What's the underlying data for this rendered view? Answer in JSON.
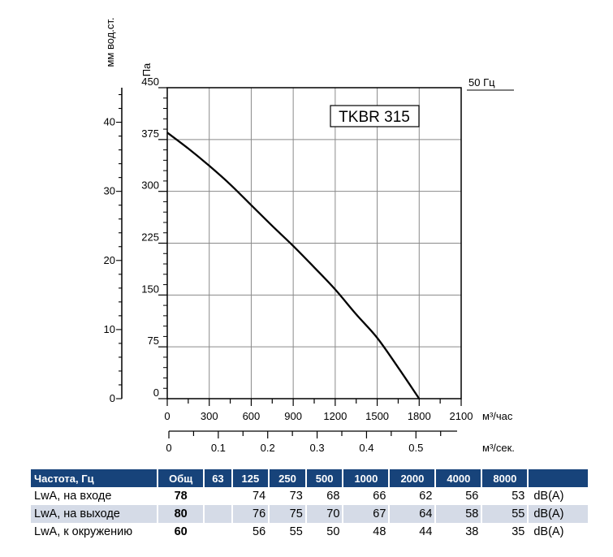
{
  "chart_data": {
    "type": "line",
    "title": "TKBR 315",
    "frequency_label": "50 Гц",
    "ylabel_left": "мм вод.ст.",
    "ylabel": "Па",
    "xlabel": "м³/час",
    "xlabel_secondary": "м³/сек.",
    "xlim": [
      0,
      2100
    ],
    "ylim": [
      0,
      450
    ],
    "ylim_left": [
      0,
      45
    ],
    "x_ticks": [
      "0",
      "300",
      "600",
      "900",
      "1200",
      "1500",
      "1800",
      "2100"
    ],
    "x_ticks_secondary": [
      "0",
      "0.1",
      "0.2",
      "0.3",
      "0.4",
      "0.5"
    ],
    "y_ticks": [
      "0",
      "75",
      "150",
      "225",
      "300",
      "375",
      "450"
    ],
    "y_ticks_left": [
      "0",
      "10",
      "20",
      "30",
      "40"
    ],
    "grid": true,
    "series": [
      {
        "x": [
          0,
          150,
          300,
          450,
          600,
          750,
          900,
          1050,
          1200,
          1350,
          1500,
          1650,
          1800
        ],
        "y": [
          385,
          362,
          337,
          310,
          280,
          250,
          221,
          190,
          158,
          122,
          88,
          45,
          0
        ]
      }
    ]
  },
  "table": {
    "headers": [
      "Частота, Гц",
      "Общ",
      "63",
      "125",
      "250",
      "500",
      "1000",
      "2000",
      "4000",
      "8000",
      ""
    ],
    "rows": [
      {
        "label": "LwA, на входе",
        "total": "78",
        "values": [
          "",
          "74",
          "73",
          "68",
          "66",
          "62",
          "56",
          "53"
        ],
        "unit": "dB(A)"
      },
      {
        "label": "LwA, на выходе",
        "total": "80",
        "values": [
          "",
          "76",
          "75",
          "70",
          "67",
          "64",
          "58",
          "55"
        ],
        "unit": "dB(A)"
      },
      {
        "label": "LwA, к окружению",
        "total": "60",
        "values": [
          "",
          "56",
          "55",
          "50",
          "48",
          "44",
          "38",
          "35"
        ],
        "unit": "dB(A)"
      }
    ]
  }
}
